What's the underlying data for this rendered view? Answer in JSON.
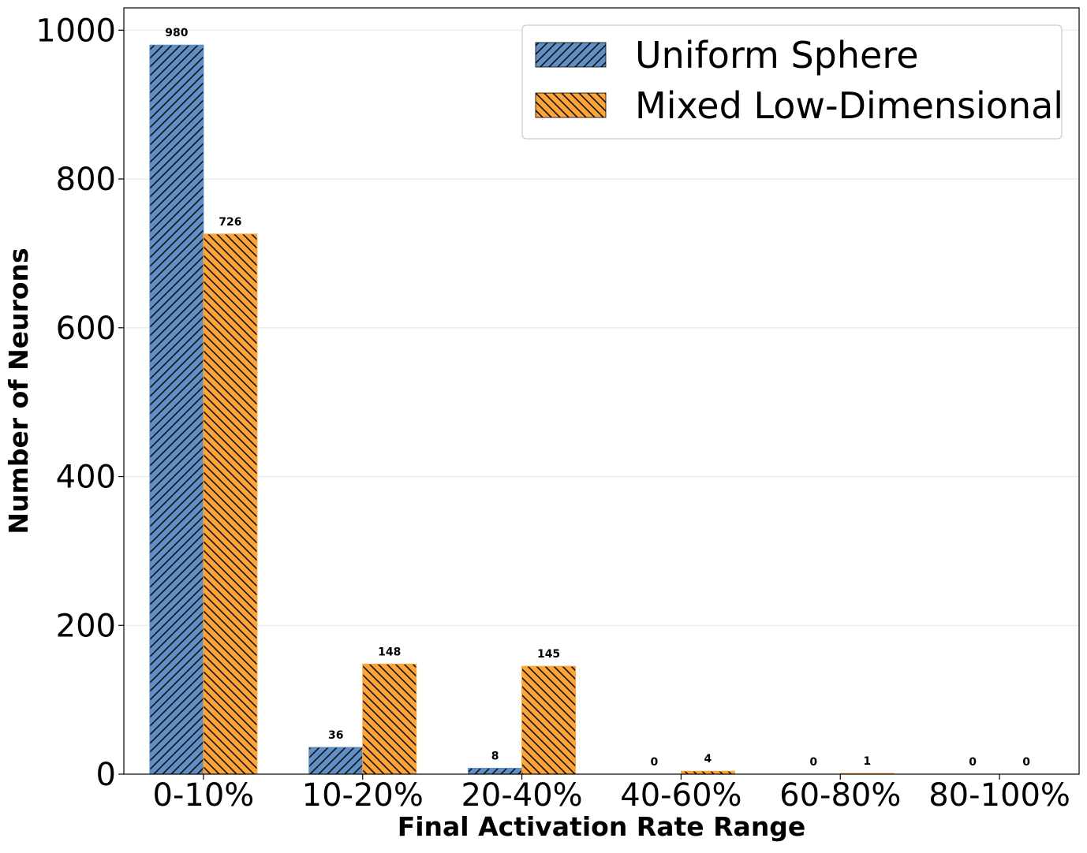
{
  "chart_data": {
    "type": "bar",
    "title": "",
    "xlabel": "Final Activation Rate Range",
    "ylabel": "Number of Neurons",
    "categories": [
      "0-10%",
      "10-20%",
      "20-40%",
      "40-60%",
      "60-80%",
      "80-100%"
    ],
    "series": [
      {
        "name": "Uniform Sphere",
        "values": [
          980,
          36,
          8,
          0,
          0,
          0
        ],
        "color": "#5f8fc4",
        "hatch": "forward-diagonal"
      },
      {
        "name": "Mixed Low-Dimensional",
        "values": [
          726,
          148,
          145,
          4,
          1,
          0
        ],
        "color": "#fca43a",
        "hatch": "back-diagonal"
      }
    ],
    "ylim": [
      0,
      1030
    ],
    "yticks": [
      0,
      200,
      400,
      600,
      800,
      1000
    ],
    "grid": "horizontal",
    "legend_position": "top-right",
    "data_labels": true
  }
}
